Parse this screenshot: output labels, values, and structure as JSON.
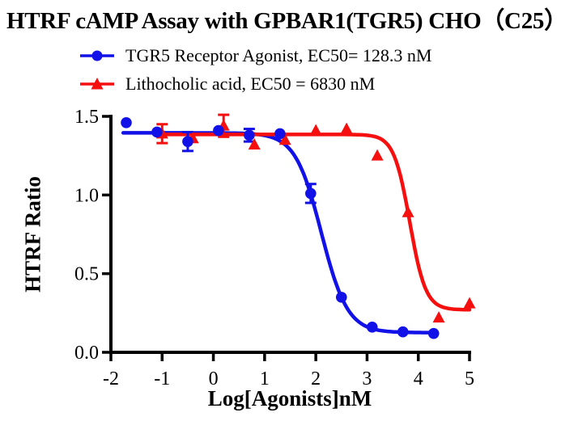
{
  "title": "HTRF cAMP Assay with GPBAR1(TGR5) CHO（C25）",
  "legend": {
    "items": [
      {
        "label": "TGR5 Receptor Agonist, EC50= 128.3 nM",
        "marker": "circle",
        "color": "#1212E8"
      },
      {
        "label": "Lithocholic acid, EC50 = 6830 nM",
        "marker": "triangle",
        "color": "#F50F0F"
      }
    ]
  },
  "chart_data": {
    "type": "scatter",
    "title": "HTRF cAMP Assay with GPBAR1(TGR5) CHO（C25）",
    "xlabel": "Log[Agonists]nM",
    "ylabel": "HTRF Ratio",
    "xlim": [
      -2,
      5
    ],
    "ylim": [
      0,
      1.5
    ],
    "x_ticks": [
      "-2",
      "-1",
      "0",
      "1",
      "2",
      "3",
      "4",
      "5"
    ],
    "y_ticks": [
      "0.0",
      "0.5",
      "1.0",
      "1.5"
    ],
    "grid": false,
    "legend_position": "top",
    "axis_color": "#000000",
    "series": [
      {
        "name": "TGR5 Receptor Agonist",
        "ec50_text": "EC50= 128.3 nM",
        "ec50_nM": 128.3,
        "color": "#1212E8",
        "marker": "circle",
        "points": [
          [
            -1.7,
            1.46,
            0
          ],
          [
            -1.1,
            1.4,
            0
          ],
          [
            -0.5,
            1.34,
            0.06
          ],
          [
            0.1,
            1.41,
            0
          ],
          [
            0.7,
            1.38,
            0.04
          ],
          [
            1.3,
            1.39,
            0
          ],
          [
            1.9,
            1.01,
            0.06
          ],
          [
            2.5,
            0.35,
            0
          ],
          [
            3.1,
            0.16,
            0
          ],
          [
            3.7,
            0.13,
            0
          ],
          [
            4.3,
            0.12,
            0
          ]
        ],
        "fit": {
          "model": "4PL",
          "top": 1.395,
          "bottom": 0.125,
          "log_ec50": 2.108,
          "hill": 1.7,
          "x_start": -1.76,
          "x_end": 4.36
        }
      },
      {
        "name": "Lithocholic acid",
        "ec50_text": "EC50 = 6830 nM",
        "ec50_nM": 6830,
        "color": "#F50F0F",
        "marker": "triangle",
        "points": [
          [
            -1.0,
            1.39,
            0.06
          ],
          [
            -0.4,
            1.36,
            0
          ],
          [
            0.2,
            1.44,
            0.07
          ],
          [
            0.8,
            1.32,
            0
          ],
          [
            1.4,
            1.35,
            0
          ],
          [
            2.0,
            1.41,
            0
          ],
          [
            2.6,
            1.42,
            0
          ],
          [
            3.2,
            1.25,
            0
          ],
          [
            3.8,
            0.89,
            0
          ],
          [
            4.4,
            0.22,
            0
          ],
          [
            5.0,
            0.31,
            0
          ]
        ],
        "fit": {
          "model": "4PL",
          "top": 1.385,
          "bottom": 0.27,
          "log_ec50": 3.834,
          "hill": 2.8,
          "x_start": -1.15,
          "x_end": 5.0
        }
      }
    ]
  }
}
